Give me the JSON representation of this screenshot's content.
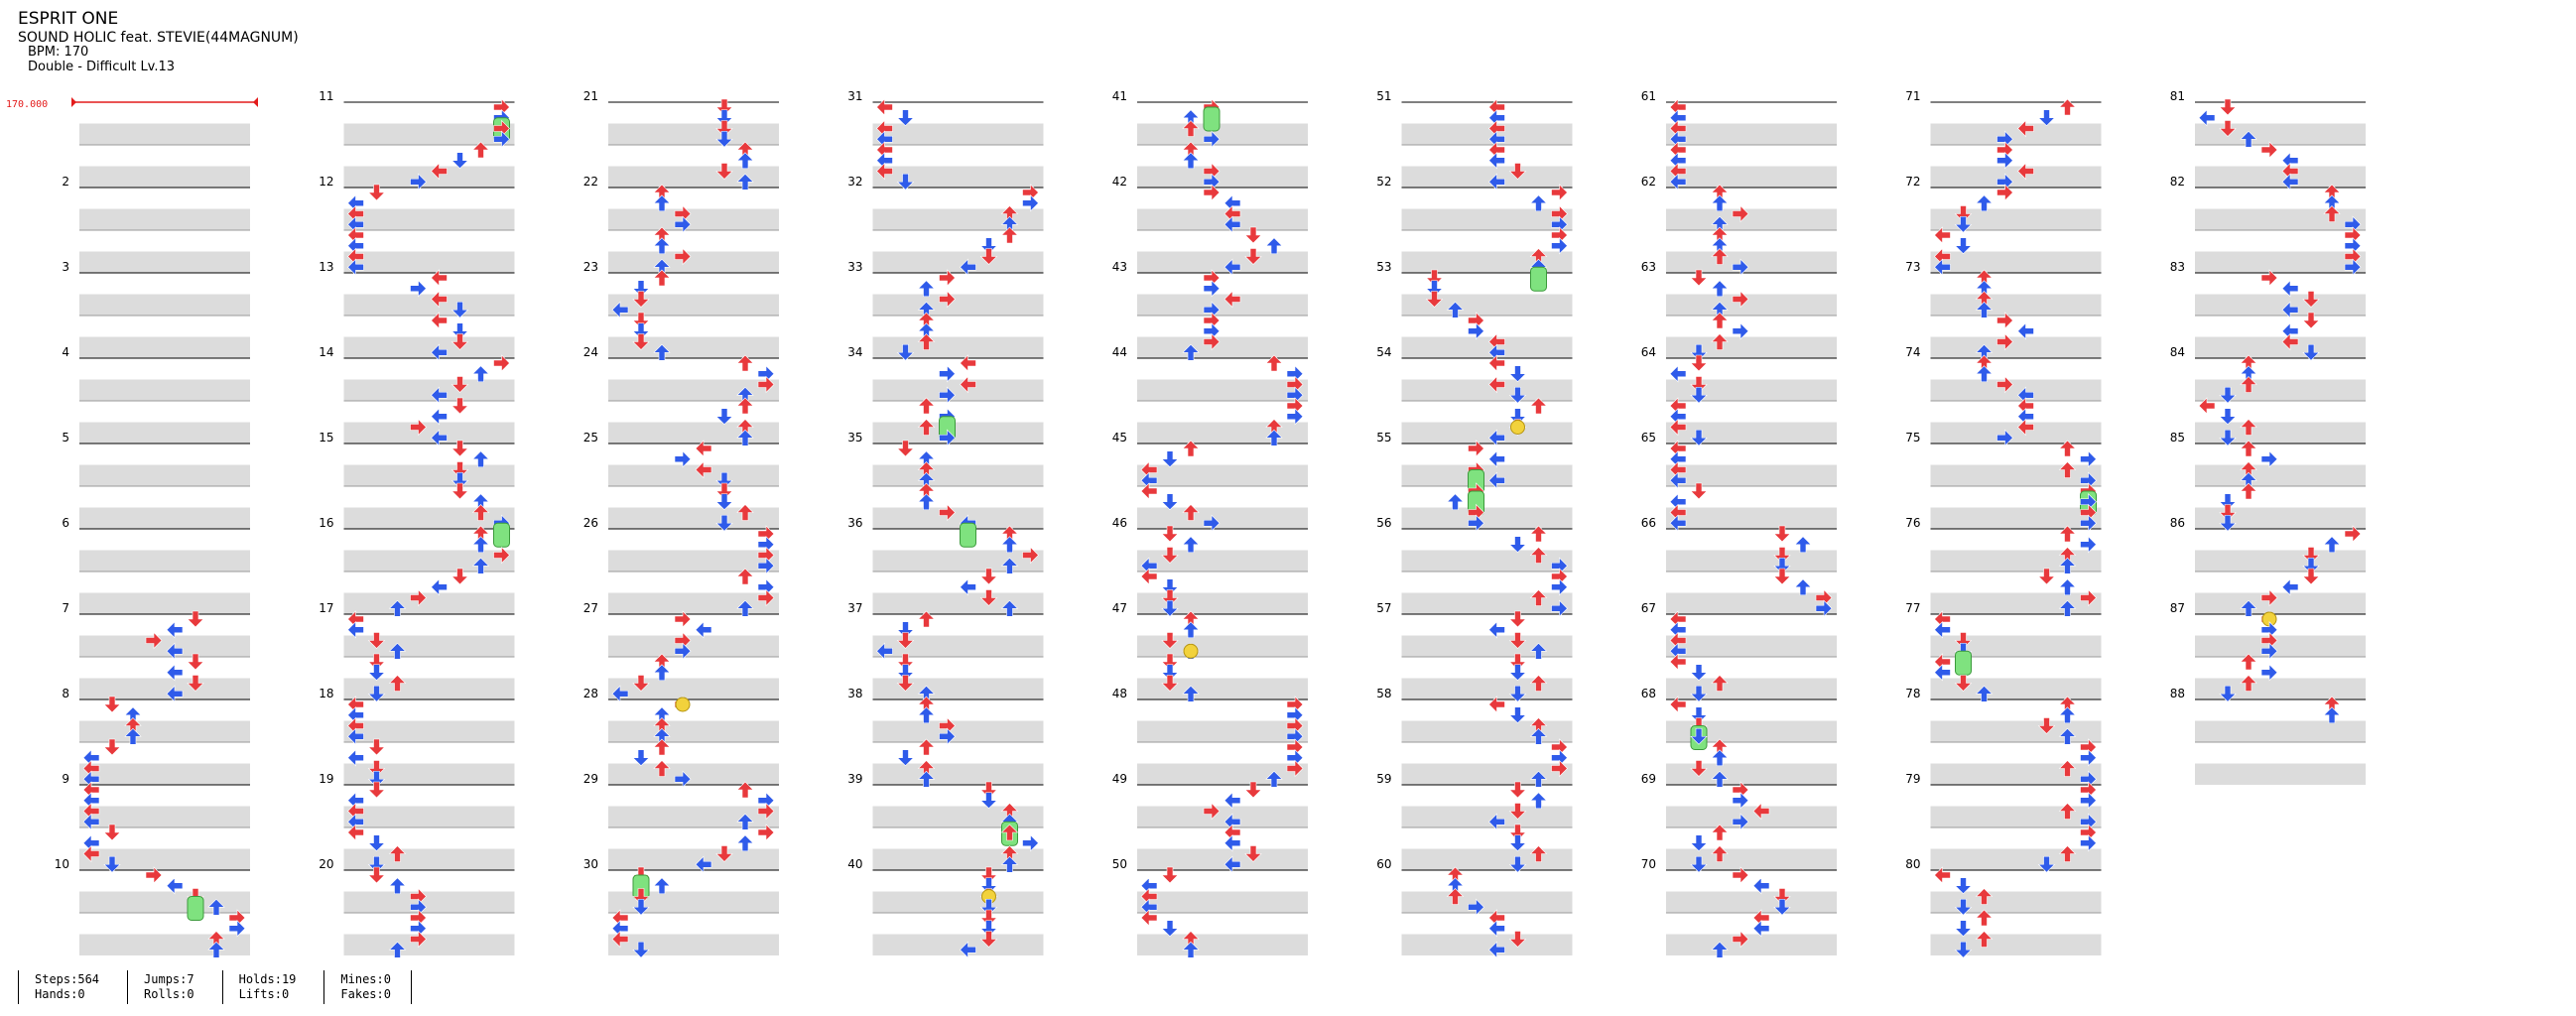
{
  "song": {
    "title": "ESPRIT ONE",
    "artist": "SOUND HOLIC feat. STEVIE(44MAGNUM)",
    "bpm_label": "BPM: 170",
    "chart_label": "Double - Difficult  Lv.13"
  },
  "bpm_marker": {
    "label": "170.000"
  },
  "measures": {
    "total": 88,
    "per_column": 10,
    "numbers": [
      "",
      "2",
      "3",
      "4",
      "5",
      "6",
      "7",
      "8",
      "9",
      "10",
      "11",
      "12",
      "13",
      "14",
      "15",
      "16",
      "17",
      "18",
      "19",
      "20",
      "21",
      "22",
      "23",
      "24",
      "25",
      "26",
      "27",
      "28",
      "29",
      "30",
      "31",
      "32",
      "33",
      "34",
      "35",
      "36",
      "37",
      "38",
      "39",
      "40",
      "41",
      "42",
      "43",
      "44",
      "45",
      "46",
      "47",
      "48",
      "49",
      "50",
      "51",
      "52",
      "53",
      "54",
      "55",
      "56",
      "57",
      "58",
      "59",
      "60",
      "61",
      "62",
      "63",
      "64",
      "65",
      "66",
      "67",
      "68",
      "69",
      "70",
      "71",
      "72",
      "73",
      "74",
      "75",
      "76",
      "77",
      "78",
      "79",
      "80",
      "81",
      "82",
      "83",
      "84",
      "85",
      "86",
      "87",
      "88"
    ]
  },
  "colors": {
    "left_arrow": "#e8393c",
    "right_arrow": "#2f5bea",
    "hold": "#7fe27f",
    "mine": "#f2d23c",
    "stripe": "#dcdcdc",
    "bpm": "#e31b1b"
  },
  "note_icons": [
    "arrow-left-icon",
    "arrow-down-icon",
    "arrow-up-icon",
    "arrow-right-icon",
    "hold-icon",
    "mine-icon"
  ],
  "stats": {
    "steps": "Steps:564",
    "hands": "Hands:0",
    "jumps": "Jumps:7",
    "rolls": "Rolls:0",
    "holds": "Holds:19",
    "lifts": "Lifts:0",
    "mines": "Mines:0",
    "fakes": "Fakes:0"
  }
}
